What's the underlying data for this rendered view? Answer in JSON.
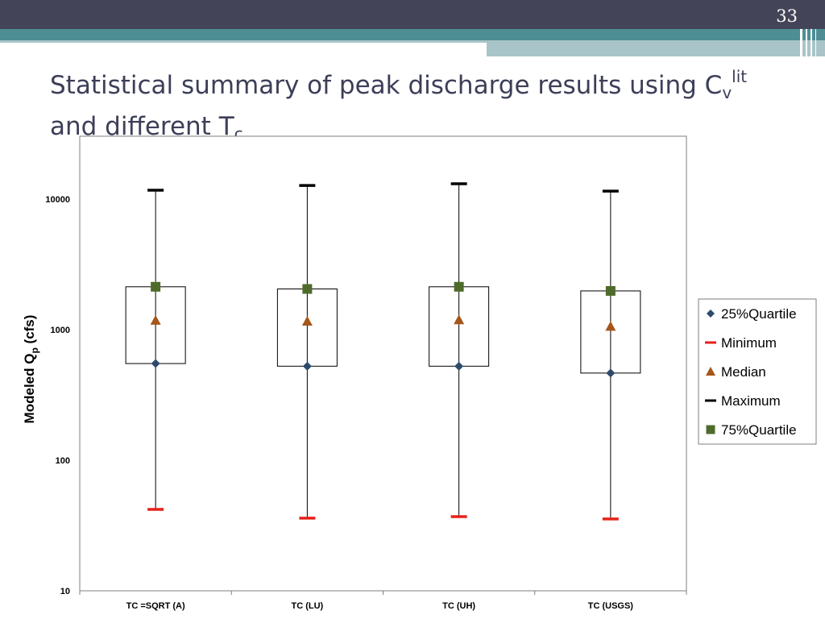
{
  "slide": {
    "number": "33",
    "title_main": "Statistical summary of peak discharge results using C",
    "title_sub_v": "v",
    "title_sup_lit": "lit",
    "title_line2": "and different T",
    "title_sub_c": "c"
  },
  "colors": {
    "q25": "#2e4a6b",
    "minimum": "#e8201a",
    "median": "#a5561a",
    "maximum": "#000000",
    "q75": "#4f6b2c"
  },
  "chart_data": {
    "type": "box",
    "title": "",
    "ylabel_main": "Modeled Q",
    "ylabel_sub": "p",
    "ylabel_unit": " (cfs)",
    "xlabel": "",
    "yscale": "log",
    "ylim": [
      10,
      25000
    ],
    "yticks": [
      "10",
      "100",
      "1000",
      "10000"
    ],
    "categories": [
      "TC =SQRT (A)",
      "TC (LU)",
      "TC (UH)",
      "TC (USGS)"
    ],
    "legend_position": "right",
    "series": [
      {
        "name": "25%Quartile",
        "marker": "diamond",
        "values": [
          550,
          525,
          525,
          465
        ]
      },
      {
        "name": "Minimum",
        "marker": "dash",
        "values": [
          42,
          36,
          37,
          35.5
        ]
      },
      {
        "name": "Median",
        "marker": "triangle",
        "values": [
          1180,
          1160,
          1190,
          1060
        ]
      },
      {
        "name": "Maximum",
        "marker": "dash",
        "values": [
          11700,
          12700,
          13100,
          11500
        ]
      },
      {
        "name": "75%Quartile",
        "marker": "square",
        "values": [
          2130,
          2050,
          2130,
          1980
        ]
      }
    ]
  }
}
